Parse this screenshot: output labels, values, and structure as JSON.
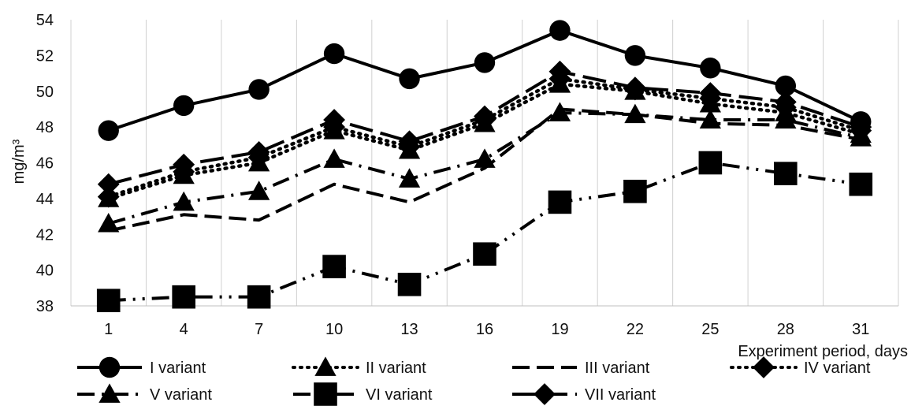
{
  "chart_data": {
    "type": "line",
    "title": "",
    "xlabel": "Experiment  period, days",
    "ylabel": "mg/m³",
    "ylim": [
      38,
      54
    ],
    "y_ticks": [
      38,
      40,
      42,
      44,
      46,
      48,
      50,
      52,
      54
    ],
    "categories": [
      "1",
      "4",
      "7",
      "10",
      "13",
      "16",
      "19",
      "22",
      "25",
      "28",
      "31"
    ],
    "grid": "vertical",
    "legend_position": "bottom",
    "series": [
      {
        "name": "I variant",
        "marker": "circle",
        "line": "solid",
        "color": "#000000",
        "values": [
          47.8,
          49.2,
          50.1,
          52.1,
          50.7,
          51.6,
          53.4,
          52.0,
          51.3,
          50.3,
          48.3
        ]
      },
      {
        "name": "II variant",
        "marker": "triangle",
        "line": "dotted",
        "color": "#000000",
        "values": [
          44.0,
          45.3,
          46.0,
          47.8,
          46.7,
          48.2,
          50.4,
          50.0,
          49.3,
          48.8,
          47.6
        ]
      },
      {
        "name": "III variant",
        "marker": "none",
        "line": "dashed",
        "color": "#000000",
        "values": [
          42.2,
          43.1,
          42.8,
          44.8,
          43.8,
          45.7,
          49.0,
          48.7,
          48.2,
          48.1,
          47.3
        ]
      },
      {
        "name": "IV variant",
        "marker": "diamond",
        "line": "dotted",
        "color": "#000000",
        "values": [
          44.1,
          45.5,
          46.3,
          48.0,
          46.9,
          48.4,
          50.7,
          50.1,
          49.6,
          49.1,
          47.8
        ]
      },
      {
        "name": "V variant",
        "marker": "triangle",
        "line": "dash-dot",
        "color": "#000000",
        "values": [
          42.6,
          43.8,
          44.4,
          46.2,
          45.1,
          46.2,
          48.8,
          48.7,
          48.4,
          48.4,
          47.4
        ]
      },
      {
        "name": "VI variant",
        "marker": "square",
        "line": "dash-dot-dot",
        "color": "#000000",
        "values": [
          38.3,
          38.5,
          38.5,
          40.2,
          39.2,
          40.9,
          43.8,
          44.4,
          46.0,
          45.4,
          44.8
        ]
      },
      {
        "name": "VII variant",
        "marker": "diamond",
        "line": "long-dash",
        "color": "#000000",
        "values": [
          44.8,
          45.9,
          46.6,
          48.4,
          47.2,
          48.6,
          51.1,
          50.2,
          49.9,
          49.4,
          48.0
        ]
      }
    ]
  }
}
